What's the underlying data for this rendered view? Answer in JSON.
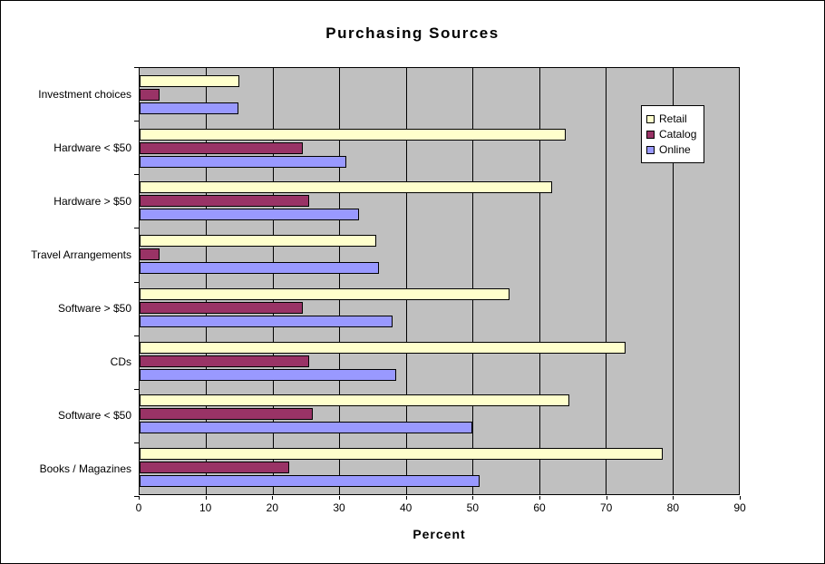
{
  "title": "Purchasing Sources",
  "chart_data": {
    "type": "bar",
    "orientation": "horizontal",
    "title": "Purchasing Sources",
    "xlabel": "Percent",
    "ylabel": "",
    "xlim": [
      0,
      90
    ],
    "xticks": [
      0,
      10,
      20,
      30,
      40,
      50,
      60,
      70,
      80,
      90
    ],
    "grid": true,
    "plot_background": "#C0C0C0",
    "bar_border_color": "#000000",
    "legend_position": "top-right-inside",
    "categories": [
      "Investment choices",
      "Hardware < $50",
      "Hardware > $50",
      "Travel Arrangements",
      "Software > $50",
      "CDs",
      "Software < $50",
      "Books / Magazines"
    ],
    "series": [
      {
        "name": "Retail",
        "color": "#FFFFCC",
        "values": [
          15,
          64,
          62,
          35.5,
          55.5,
          73,
          64.5,
          78.5
        ]
      },
      {
        "name": "Catalog",
        "color": "#993366",
        "values": [
          3,
          24.5,
          25.5,
          3,
          24.5,
          25.5,
          26,
          22.5
        ]
      },
      {
        "name": "Online",
        "color": "#9999FF",
        "values": [
          14.8,
          31,
          33,
          36,
          38,
          38.5,
          50,
          51
        ]
      }
    ]
  }
}
